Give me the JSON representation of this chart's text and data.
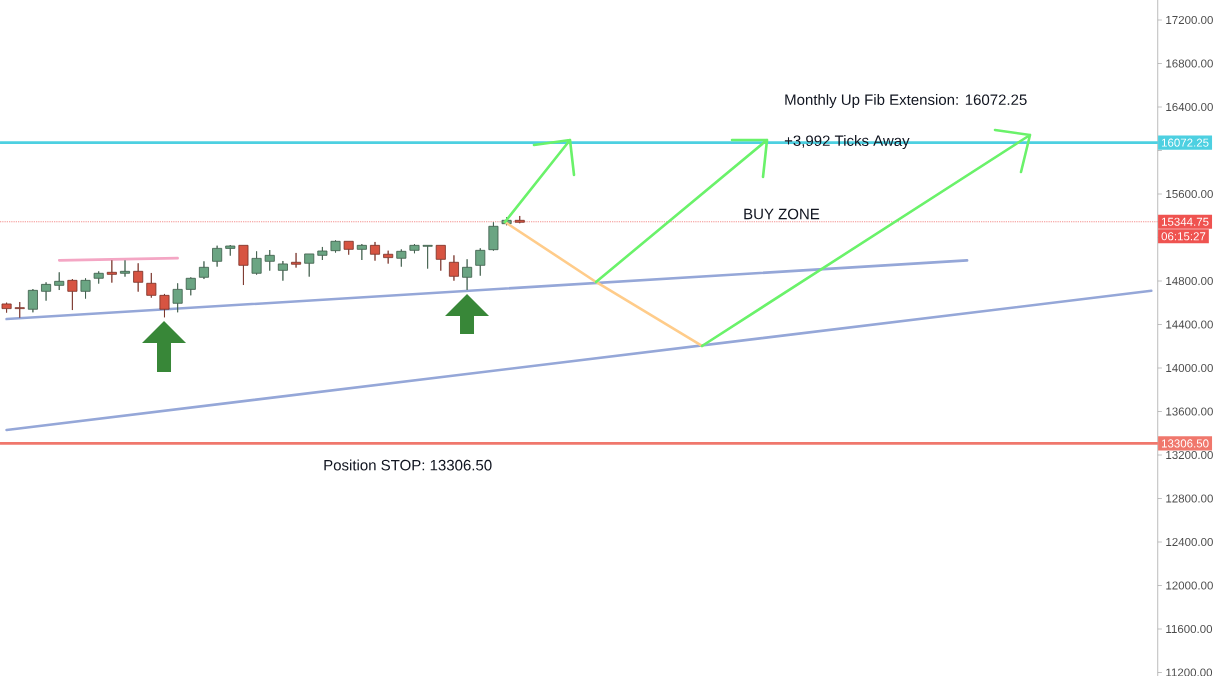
{
  "chart_data": {
    "type": "candlestick",
    "categories": [
      null,
      null,
      null,
      null,
      null,
      null,
      null,
      null,
      null,
      null,
      null,
      null,
      null,
      null,
      null,
      null,
      null,
      null,
      null,
      null,
      null,
      null,
      null,
      null,
      null,
      null,
      null,
      null,
      null,
      null,
      null,
      null,
      null,
      null,
      null,
      null,
      null,
      null,
      null,
      null,
      null,
      null,
      null,
      null,
      null,
      null,
      null,
      null,
      null,
      null,
      null,
      null,
      null,
      null,
      null,
      null,
      null,
      null,
      null,
      null,
      null,
      null,
      null,
      null,
      null,
      null,
      null,
      null,
      null,
      null,
      null,
      null,
      null,
      null,
      null,
      null,
      null,
      null,
      null,
      null,
      null,
      null,
      null,
      null,
      null,
      null,
      null,
      null
    ],
    "ohlc": [
      [
        14589,
        14601,
        14509,
        14546
      ],
      [
        14555,
        14607,
        14463,
        14546
      ],
      [
        14540,
        14726,
        14512,
        14714
      ],
      [
        14705,
        14788,
        14619,
        14769
      ],
      [
        14760,
        14880,
        14717,
        14797
      ],
      [
        14806,
        14818,
        14533,
        14705
      ],
      [
        14705,
        14825,
        14638,
        14806
      ],
      [
        14825,
        14889,
        14776,
        14871
      ],
      [
        14880,
        14990,
        14785,
        14861
      ],
      [
        14871,
        14990,
        14840,
        14889
      ],
      [
        14889,
        14963,
        14702,
        14788
      ],
      [
        14779,
        14874,
        14647,
        14668
      ],
      [
        14668,
        14681,
        14466,
        14540
      ],
      [
        14595,
        14779,
        14512,
        14723
      ],
      [
        14723,
        14834,
        14668,
        14825
      ],
      [
        14834,
        14981,
        14818,
        14926
      ],
      [
        14981,
        15125,
        14932,
        15100
      ],
      [
        15100,
        15131,
        15033,
        15122
      ],
      [
        15128,
        15128,
        14763,
        14944
      ],
      [
        14871,
        15073,
        14858,
        15008
      ],
      [
        14981,
        15085,
        14895,
        15036
      ],
      [
        14898,
        14984,
        14803,
        14957
      ],
      [
        14972,
        15058,
        14923,
        14954
      ],
      [
        14963,
        15049,
        14840,
        15049
      ],
      [
        15036,
        15113,
        14993,
        15076
      ],
      [
        15079,
        15174,
        15061,
        15165
      ],
      [
        15165,
        15165,
        15042,
        15091
      ],
      [
        15091,
        15140,
        14993,
        15128
      ],
      [
        15128,
        15159,
        14987,
        15046
      ],
      [
        15046,
        15079,
        14960,
        15015
      ],
      [
        15009,
        15091,
        14932,
        15073
      ],
      [
        15082,
        15140,
        15055,
        15128
      ],
      [
        15119,
        15128,
        14914,
        15128
      ],
      [
        15128,
        15128,
        14895,
        14999
      ],
      [
        14972,
        15036,
        14803,
        14843
      ],
      [
        14834,
        15000,
        14718,
        14926
      ],
      [
        14944,
        15101,
        14849,
        15082
      ],
      [
        15088,
        15340,
        15079,
        15303
      ],
      [
        15327,
        15386,
        15312,
        15358
      ],
      [
        15358,
        15398,
        15331,
        15340
      ],
      null,
      null,
      null,
      null,
      null,
      null,
      null,
      null,
      null,
      null,
      null,
      null,
      null,
      null,
      null,
      null,
      null,
      null,
      null,
      null,
      null,
      null,
      null,
      null,
      null,
      null,
      null,
      null,
      null,
      null,
      null,
      null,
      null,
      null,
      null,
      null,
      null,
      null,
      null,
      null,
      null,
      null,
      null,
      null,
      null,
      null,
      null,
      null
    ],
    "colors": [
      "#d75442",
      "#d75442",
      "#6ba583",
      "#6ba583",
      "#6ba583",
      "#d75442",
      "#6ba583",
      "#6ba583",
      "#d75442",
      "#6ba583",
      "#d75442",
      "#d75442",
      "#d75442",
      "#6ba583",
      "#6ba583",
      "#6ba583",
      "#6ba583",
      "#6ba583",
      "#d75442",
      "#6ba583",
      "#6ba583",
      "#6ba583",
      "#d75442",
      "#6ba583",
      "#6ba583",
      "#6ba583",
      "#d75442",
      "#6ba583",
      "#d75442",
      "#d75442",
      "#6ba583",
      "#6ba583",
      "#6ba583",
      "#d75442",
      "#d75442",
      "#6ba583",
      "#6ba583",
      "#6ba583",
      "#6ba583",
      "#d75442",
      null,
      null,
      null,
      null,
      null,
      null,
      null,
      null,
      null,
      null,
      null,
      null,
      null,
      null,
      null,
      null,
      null,
      null,
      null,
      null,
      null,
      null,
      null,
      null,
      null,
      null,
      null,
      null,
      null,
      null,
      null,
      null,
      null,
      null,
      null,
      null,
      null,
      null,
      null,
      null,
      null,
      null,
      null,
      null,
      null,
      null,
      null,
      null
    ],
    "series": [
      {
        "type": "line",
        "color": "#95a7d8",
        "values": [
          14450,
          null,
          null,
          null,
          null,
          null,
          null,
          null,
          null,
          null,
          null,
          null,
          null,
          null,
          null,
          null,
          null,
          null,
          null,
          null,
          null,
          null,
          null,
          null,
          null,
          null,
          null,
          null,
          null,
          null,
          null,
          null,
          null,
          null,
          null,
          null,
          null,
          null,
          null,
          null,
          null,
          null,
          null,
          null,
          null,
          null,
          null,
          null,
          null,
          null,
          null,
          null,
          null,
          null,
          null,
          null,
          null,
          null,
          null,
          null,
          null,
          null,
          null,
          null,
          null,
          null,
          null,
          null,
          null,
          null,
          null,
          null,
          null,
          14990,
          null,
          null,
          null,
          null,
          null,
          null,
          null,
          null,
          null,
          null,
          null,
          null,
          null,
          null
        ]
      },
      {
        "type": "line",
        "color": "#95a7d8",
        "values": [
          13430,
          null,
          null,
          null,
          null,
          null,
          null,
          null,
          null,
          null,
          null,
          null,
          null,
          null,
          null,
          null,
          null,
          null,
          null,
          null,
          null,
          null,
          null,
          null,
          null,
          null,
          null,
          null,
          null,
          null,
          null,
          null,
          null,
          null,
          null,
          null,
          null,
          null,
          null,
          null,
          null,
          null,
          null,
          null,
          null,
          null,
          null,
          null,
          null,
          null,
          null,
          null,
          null,
          null,
          null,
          null,
          null,
          null,
          null,
          null,
          null,
          null,
          null,
          null,
          null,
          null,
          null,
          null,
          null,
          null,
          null,
          null,
          null,
          null,
          null,
          null,
          null,
          null,
          null,
          null,
          null,
          null,
          null,
          null,
          null,
          null,
          null,
          14710
        ]
      },
      {
        "type": "line",
        "color": "#f4a6c4",
        "values": [
          null,
          null,
          null,
          null,
          14990,
          null,
          null,
          null,
          null,
          null,
          null,
          null,
          null,
          15010,
          null,
          null,
          null,
          null,
          null,
          null,
          null,
          null,
          null,
          null,
          null,
          null,
          null,
          null,
          null,
          null,
          null,
          null,
          null,
          null,
          null,
          null,
          null,
          null,
          null,
          null,
          null,
          null,
          null,
          null,
          null,
          null,
          null,
          null,
          null,
          null,
          null,
          null,
          null,
          null,
          null,
          null,
          null,
          null,
          null,
          null,
          null,
          null,
          null,
          null,
          null,
          null,
          null,
          null,
          null,
          null,
          null,
          null,
          null,
          null,
          null,
          null,
          null,
          null,
          null,
          null,
          null,
          null,
          null,
          null,
          null,
          null,
          null,
          null
        ]
      }
    ],
    "ylim": [
      11168,
      17384
    ],
    "yticks": [
      {
        "value": 11200,
        "label": "11200.00"
      },
      {
        "value": 11600,
        "label": "11600.00"
      },
      {
        "value": 12000,
        "label": "12000.00"
      },
      {
        "value": 12400,
        "label": "12400.00"
      },
      {
        "value": 12800,
        "label": "12800.00"
      },
      {
        "value": 13200,
        "label": "13200.00"
      },
      {
        "value": 13600,
        "label": "13600.00"
      },
      {
        "value": 14000,
        "label": "14000.00"
      },
      {
        "value": 14400,
        "label": "14400.00"
      },
      {
        "value": 14800,
        "label": "14800.00"
      },
      {
        "value": 15200,
        "label": null
      },
      {
        "value": 15600,
        "label": "15600.00"
      },
      {
        "value": 16000,
        "label": null
      },
      {
        "value": 16400,
        "label": "16400.00"
      },
      {
        "value": 16800,
        "label": "16800.00"
      },
      {
        "value": 17200,
        "label": "17200.00"
      }
    ],
    "tick_labels": "y",
    "ref_lines": [
      {
        "axis": "y",
        "value": 16072.25,
        "label": "16072.25",
        "color": "#4dd0e1"
      },
      {
        "axis": "y",
        "value": 15344.75,
        "label": "15344.75",
        "color": "#ef5350",
        "line_style": "dotted"
      },
      {
        "axis": "y",
        "value": 13306.5,
        "label": "13306.50",
        "color": "#f0776c"
      }
    ],
    "annotations": [
      "Monthly Up Fib Extension: 16072.25",
      "+3,992 Ticks Away",
      "BUY ZONE",
      "Position STOP: 13306.50",
      "06:15:27"
    ]
  }
}
